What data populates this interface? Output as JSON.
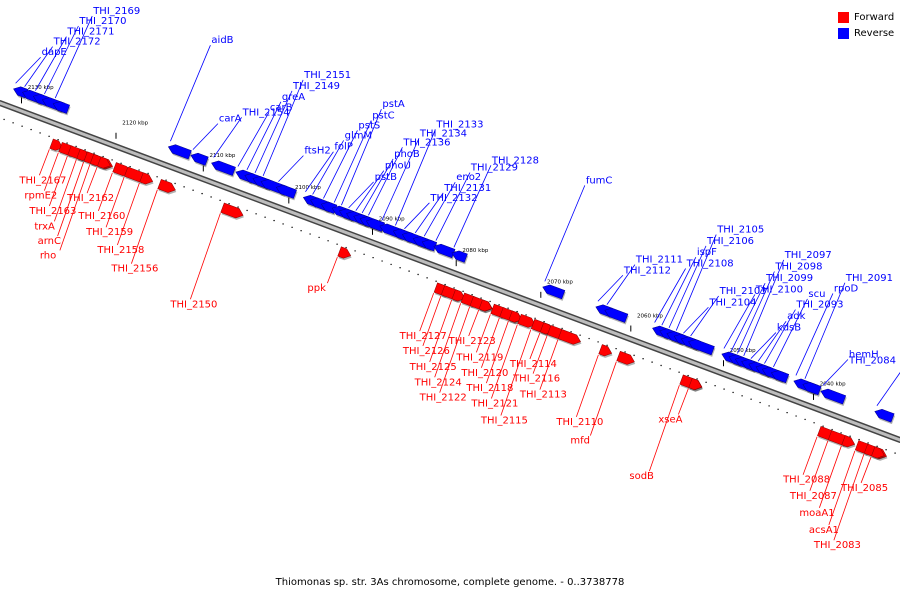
{
  "legend": {
    "forward_label": "Forward",
    "reverse_label": "Reverse",
    "forward_color": "#ff0000",
    "reverse_color": "#0000ff"
  },
  "caption": "Thiomonas sp. str. 3As chromosome, complete genome. - 0..3738778",
  "ruler": {
    "ticks": [
      {
        "label": "2130 kbp",
        "t": 0.02
      },
      {
        "label": "2120 kbp",
        "t": 0.125
      },
      {
        "label": "2110 kbp",
        "t": 0.222
      },
      {
        "label": "2100 kbp",
        "t": 0.317
      },
      {
        "label": "2090 kbp",
        "t": 0.41
      },
      {
        "label": "2080 kbp",
        "t": 0.503
      },
      {
        "label": "2070 kbp",
        "t": 0.597
      },
      {
        "label": "2060 kbp",
        "t": 0.697
      },
      {
        "label": "2050 kbp",
        "t": 0.8
      },
      {
        "label": "2040 kbp",
        "t": 0.9
      }
    ]
  },
  "reverse_genes": [
    {
      "label": "dapE",
      "t": 0.008
    },
    {
      "label": "THI_2172",
      "t": 0.018
    },
    {
      "label": "THI_2171",
      "t": 0.03
    },
    {
      "label": "THI_2170",
      "t": 0.04
    },
    {
      "label": "THI_2169",
      "t": 0.052
    },
    {
      "label": "aidB",
      "t": 0.18
    },
    {
      "label": "carA",
      "t": 0.205
    },
    {
      "label": "THI_2154",
      "t": 0.228
    },
    {
      "label": "carB",
      "t": 0.255
    },
    {
      "label": "greA",
      "t": 0.265
    },
    {
      "label": "THI_2149",
      "t": 0.274
    },
    {
      "label": "THI_2151",
      "t": 0.283
    },
    {
      "label": "ftsH2",
      "t": 0.3
    },
    {
      "label": "folP",
      "t": 0.33
    },
    {
      "label": "glmM",
      "t": 0.338
    },
    {
      "label": "pstS",
      "t": 0.35
    },
    {
      "label": "pstC",
      "t": 0.362
    },
    {
      "label": "pstA",
      "t": 0.37
    },
    {
      "label": "pstB",
      "t": 0.378
    },
    {
      "label": "phoU",
      "t": 0.386
    },
    {
      "label": "phoB",
      "t": 0.393
    },
    {
      "label": "THI_2136",
      "t": 0.4
    },
    {
      "label": "THI_2134",
      "t": 0.415
    },
    {
      "label": "THI_2133",
      "t": 0.43
    },
    {
      "label": "THI_2132",
      "t": 0.44
    },
    {
      "label": "THI_2131",
      "t": 0.452
    },
    {
      "label": "eno2",
      "t": 0.462
    },
    {
      "label": "THI_2129",
      "t": 0.475
    },
    {
      "label": "THI_2128",
      "t": 0.495
    },
    {
      "label": "fumC",
      "t": 0.596
    },
    {
      "label": "THI_2112",
      "t": 0.655
    },
    {
      "label": "THI_2111",
      "t": 0.665
    },
    {
      "label": "THI_2108",
      "t": 0.718
    },
    {
      "label": "ispF",
      "t": 0.726
    },
    {
      "label": "THI_2106",
      "t": 0.734
    },
    {
      "label": "THI_2105",
      "t": 0.742
    },
    {
      "label": "THI_2104",
      "t": 0.75
    },
    {
      "label": "THI_2103",
      "t": 0.758
    },
    {
      "label": "THI_2100",
      "t": 0.795
    },
    {
      "label": "THI_2099",
      "t": 0.803
    },
    {
      "label": "THI_2098",
      "t": 0.81
    },
    {
      "label": "THI_2097",
      "t": 0.817
    },
    {
      "label": "kdsB",
      "t": 0.825
    },
    {
      "label": "adk",
      "t": 0.833
    },
    {
      "label": "THI_2093",
      "t": 0.84
    },
    {
      "label": "scu",
      "t": 0.85
    },
    {
      "label": "rpoD",
      "t": 0.875
    },
    {
      "label": "THI_2091",
      "t": 0.885
    },
    {
      "label": "hemH",
      "t": 0.905
    },
    {
      "label": "THI_2084",
      "t": 0.965
    }
  ],
  "forward_genes": [
    {
      "label": "THI_2167",
      "t": 0.065
    },
    {
      "label": "rpmE2",
      "t": 0.075
    },
    {
      "label": "THI_2163",
      "t": 0.085
    },
    {
      "label": "trxA",
      "t": 0.095
    },
    {
      "label": "arnC",
      "t": 0.103
    },
    {
      "label": "rho",
      "t": 0.11
    },
    {
      "label": "THI_2162",
      "t": 0.118
    },
    {
      "label": "THI_2160",
      "t": 0.135
    },
    {
      "label": "THI_2159",
      "t": 0.148
    },
    {
      "label": "THI_2158",
      "t": 0.165
    },
    {
      "label": "THI_2156",
      "t": 0.185
    },
    {
      "label": "THI_2150",
      "t": 0.255
    },
    {
      "label": "ppk",
      "t": 0.385
    },
    {
      "label": "THI_2127",
      "t": 0.492
    },
    {
      "label": "THI_2126",
      "t": 0.5
    },
    {
      "label": "THI_2125",
      "t": 0.512
    },
    {
      "label": "THI_2124",
      "t": 0.522
    },
    {
      "label": "THI_2122",
      "t": 0.532
    },
    {
      "label": "THI_2123",
      "t": 0.542
    },
    {
      "label": "THI_2119",
      "t": 0.555
    },
    {
      "label": "THI_2120",
      "t": 0.565
    },
    {
      "label": "THI_2118",
      "t": 0.575
    },
    {
      "label": "THI_2121",
      "t": 0.585
    },
    {
      "label": "THI_2115",
      "t": 0.6
    },
    {
      "label": "THI_2114",
      "t": 0.61
    },
    {
      "label": "THI_2116",
      "t": 0.618
    },
    {
      "label": "THI_2113",
      "t": 0.63
    },
    {
      "label": "THI_2110",
      "t": 0.675
    },
    {
      "label": "mfd",
      "t": 0.695
    },
    {
      "label": "sodB",
      "t": 0.765
    },
    {
      "label": "xseA",
      "t": 0.775
    },
    {
      "label": "THI_2088",
      "t": 0.918
    },
    {
      "label": "THI_2087",
      "t": 0.93
    },
    {
      "label": "moaA1",
      "t": 0.945
    },
    {
      "label": "acsA1",
      "t": 0.96
    },
    {
      "label": "THI_2083",
      "t": 0.97
    },
    {
      "label": "THI_2085",
      "t": 0.978
    }
  ]
}
